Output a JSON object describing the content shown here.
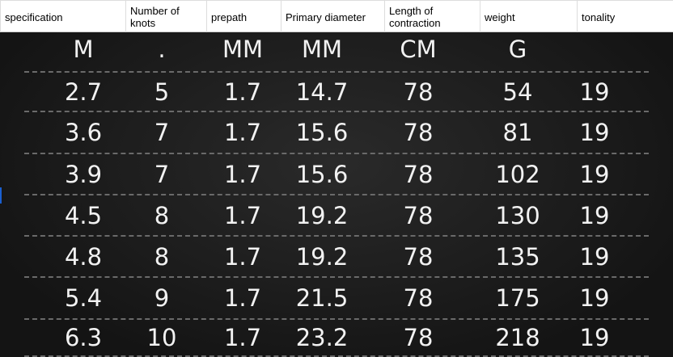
{
  "headers": [
    "specification",
    "Number of knots",
    "prepath",
    "Primary diameter",
    "Length of contraction",
    "weight",
    "tonality"
  ],
  "units": [
    "M",
    ".",
    "MM",
    "MM",
    "CM",
    "G",
    ""
  ],
  "rows": [
    [
      "2.7",
      "5",
      "1.7",
      "14.7",
      "78",
      "54",
      "19"
    ],
    [
      "3.6",
      "7",
      "1.7",
      "15.6",
      "78",
      "81",
      "19"
    ],
    [
      "3.9",
      "7",
      "1.7",
      "15.6",
      "78",
      "102",
      "19"
    ],
    [
      "4.5",
      "8",
      "1.7",
      "19.2",
      "78",
      "130",
      "19"
    ],
    [
      "4.8",
      "8",
      "1.7",
      "19.2",
      "78",
      "135",
      "19"
    ],
    [
      "5.4",
      "9",
      "1.7",
      "21.5",
      "78",
      "175",
      "19"
    ],
    [
      "6.3",
      "10",
      "1.7",
      "23.2",
      "78",
      "218",
      "19"
    ]
  ],
  "colors": {
    "board": "#1c1c1c",
    "text": "#f2f2f2",
    "dash": "#6a6a6a"
  }
}
